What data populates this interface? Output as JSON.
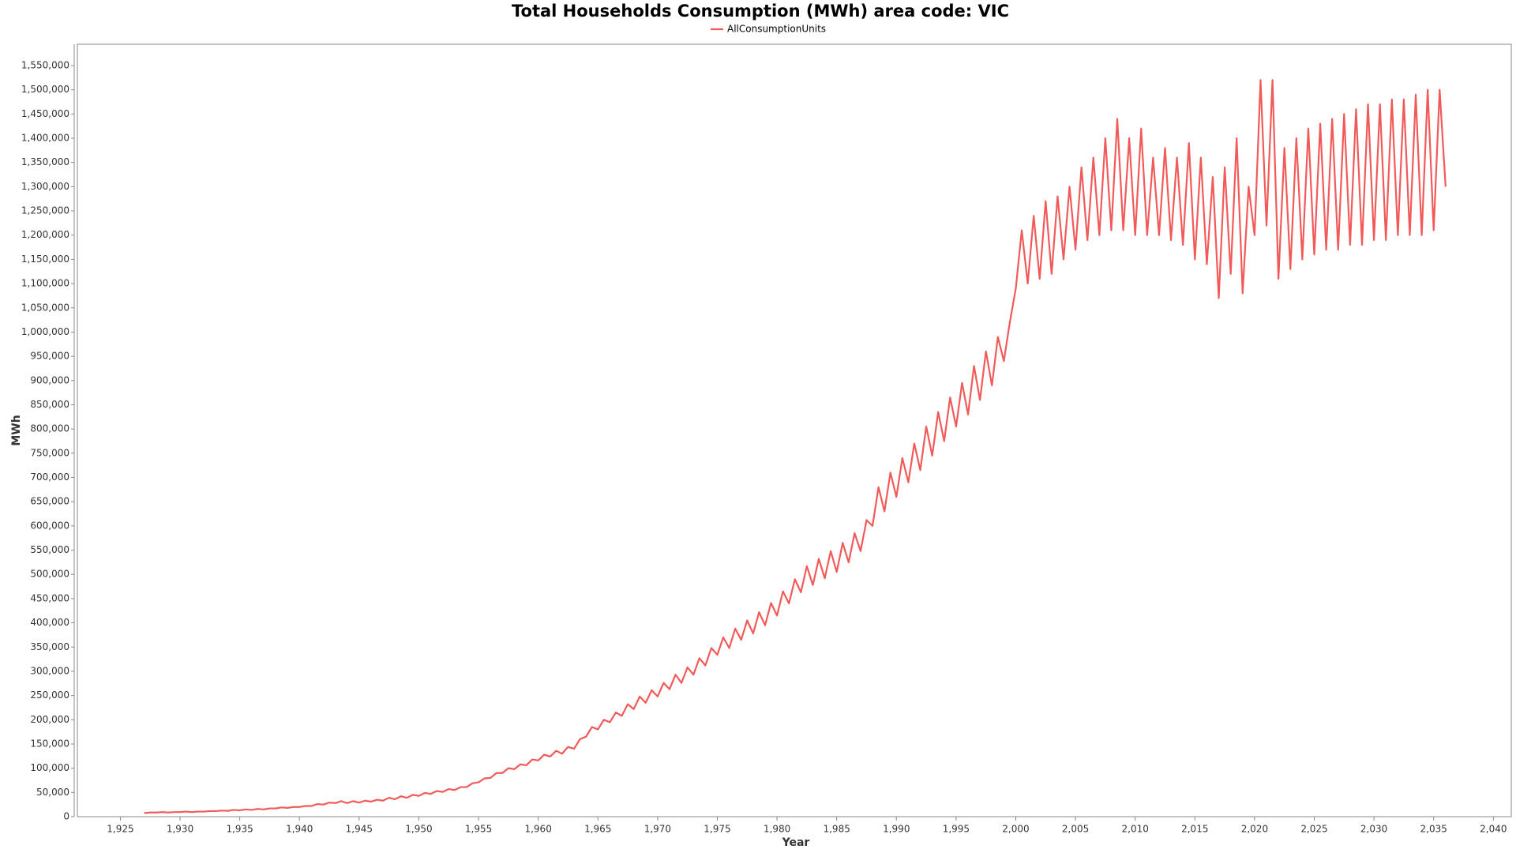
{
  "chart_data": {
    "type": "line",
    "title": "Total Households Consumption (MWh) area code: VIC",
    "x_label": "Year",
    "y_label": "MWh",
    "legend": "top",
    "grid": false,
    "xlim": [
      1921.4,
      2041.5
    ],
    "ylim": [
      0,
      1594000
    ],
    "xticks": [
      {
        "value": 1925,
        "label": "1,925"
      },
      {
        "value": 1930,
        "label": "1,930"
      },
      {
        "value": 1935,
        "label": "1,935"
      },
      {
        "value": 1940,
        "label": "1,940"
      },
      {
        "value": 1945,
        "label": "1,945"
      },
      {
        "value": 1950,
        "label": "1,950"
      },
      {
        "value": 1955,
        "label": "1,955"
      },
      {
        "value": 1960,
        "label": "1,960"
      },
      {
        "value": 1965,
        "label": "1,965"
      },
      {
        "value": 1970,
        "label": "1,970"
      },
      {
        "value": 1975,
        "label": "1,975"
      },
      {
        "value": 1980,
        "label": "1,980"
      },
      {
        "value": 1985,
        "label": "1,985"
      },
      {
        "value": 1990,
        "label": "1,990"
      },
      {
        "value": 1995,
        "label": "1,995"
      },
      {
        "value": 2000,
        "label": "2,000"
      },
      {
        "value": 2005,
        "label": "2,005"
      },
      {
        "value": 2010,
        "label": "2,010"
      },
      {
        "value": 2015,
        "label": "2,015"
      },
      {
        "value": 2020,
        "label": "2,020"
      },
      {
        "value": 2025,
        "label": "2,025"
      },
      {
        "value": 2030,
        "label": "2,030"
      },
      {
        "value": 2035,
        "label": "2,035"
      },
      {
        "value": 2040,
        "label": "2,040"
      }
    ],
    "yticks": [
      0,
      {
        "value": 50000,
        "label": "50,000"
      },
      {
        "value": 100000,
        "label": "100,000"
      },
      {
        "value": 150000,
        "label": "150,000"
      },
      {
        "value": 200000,
        "label": "200,000"
      },
      {
        "value": 250000,
        "label": "250,000"
      },
      {
        "value": 300000,
        "label": "300,000"
      },
      {
        "value": 350000,
        "label": "350,000"
      },
      {
        "value": 400000,
        "label": "400,000"
      },
      {
        "value": 450000,
        "label": "450,000"
      },
      {
        "value": 500000,
        "label": "500,000"
      },
      {
        "value": 550000,
        "label": "550,000"
      },
      {
        "value": 600000,
        "label": "600,000"
      },
      {
        "value": 650000,
        "label": "650,000"
      },
      {
        "value": 700000,
        "label": "700,000"
      },
      {
        "value": 750000,
        "label": "750,000"
      },
      {
        "value": 800000,
        "label": "800,000"
      },
      {
        "value": 850000,
        "label": "850,000"
      },
      {
        "value": 900000,
        "label": "900,000"
      },
      {
        "value": 950000,
        "label": "950,000"
      },
      {
        "value": 1000000,
        "label": "1,000,000"
      },
      {
        "value": 1050000,
        "label": "1,050,000"
      },
      {
        "value": 1100000,
        "label": "1,100,000"
      },
      {
        "value": 1150000,
        "label": "1,150,000"
      },
      {
        "value": 1200000,
        "label": "1,200,000"
      },
      {
        "value": 1250000,
        "label": "1,250,000"
      },
      {
        "value": 1300000,
        "label": "1,300,000"
      },
      {
        "value": 1350000,
        "label": "1,350,000"
      },
      {
        "value": 1400000,
        "label": "1,400,000"
      },
      {
        "value": 1450000,
        "label": "1,450,000"
      },
      {
        "value": 1500000,
        "label": "1,500,000"
      },
      {
        "value": 1550000,
        "label": "1,550,000"
      }
    ],
    "x": [
      1927,
      1927.5,
      1928,
      1928.5,
      1929,
      1929.5,
      1930,
      1930.5,
      1931,
      1931.5,
      1932,
      1932.5,
      1933,
      1933.5,
      1934,
      1934.5,
      1935,
      1935.5,
      1936,
      1936.5,
      1937,
      1937.5,
      1938,
      1938.5,
      1939,
      1939.5,
      1940,
      1940.5,
      1941,
      1941.5,
      1942,
      1942.5,
      1943,
      1943.5,
      1944,
      1944.5,
      1945,
      1945.5,
      1946,
      1946.5,
      1947,
      1947.5,
      1948,
      1948.5,
      1949,
      1949.5,
      1950,
      1950.5,
      1951,
      1951.5,
      1952,
      1952.5,
      1953,
      1953.5,
      1954,
      1954.5,
      1955,
      1955.5,
      1956,
      1956.5,
      1957,
      1957.5,
      1958,
      1958.5,
      1959,
      1959.5,
      1960,
      1960.5,
      1961,
      1961.5,
      1962,
      1962.5,
      1963,
      1963.5,
      1964,
      1964.5,
      1965,
      1965.5,
      1966,
      1966.5,
      1967,
      1967.5,
      1968,
      1968.5,
      1969,
      1969.5,
      1970,
      1970.5,
      1971,
      1971.5,
      1972,
      1972.5,
      1973,
      1973.5,
      1974,
      1974.5,
      1975,
      1975.5,
      1976,
      1976.5,
      1977,
      1977.5,
      1978,
      1978.5,
      1979,
      1979.5,
      1980,
      1980.5,
      1981,
      1981.5,
      1982,
      1982.5,
      1983,
      1983.5,
      1984,
      1984.5,
      1985,
      1985.5,
      1986,
      1986.5,
      1987,
      1987.5,
      1988,
      1988.5,
      1989,
      1989.5,
      1990,
      1990.5,
      1991,
      1991.5,
      1992,
      1992.5,
      1993,
      1993.5,
      1994,
      1994.5,
      1995,
      1995.5,
      1996,
      1996.5,
      1997,
      1997.5,
      1998,
      1998.5,
      1999,
      1999.5,
      2000,
      2000.5,
      2001,
      2001.5,
      2002,
      2002.5,
      2003,
      2003.5,
      2004,
      2004.5,
      2005,
      2005.5,
      2006,
      2006.5,
      2007,
      2007.5,
      2008,
      2008.5,
      2009,
      2009.5,
      2010,
      2010.5,
      2011,
      2011.5,
      2012,
      2012.5,
      2013,
      2013.5,
      2014,
      2014.5,
      2015,
      2015.5,
      2016,
      2016.5,
      2017,
      2017.5,
      2018,
      2018.5,
      2019,
      2019.5,
      2020,
      2020.5,
      2021,
      2021.5,
      2022,
      2022.5,
      2023,
      2023.5,
      2024,
      2024.5,
      2025,
      2025.5,
      2026,
      2026.5,
      2027,
      2027.5,
      2028,
      2028.5,
      2029,
      2029.5,
      2030,
      2030.5,
      2031,
      2031.5,
      2032,
      2032.5,
      2033,
      2033.5,
      2034,
      2034.5,
      2035,
      2035.5,
      2036
    ],
    "series": [
      {
        "name": "AllConsumptionUnits",
        "color": "#f25a5a",
        "values": [
          7500,
          8500,
          8500,
          9500,
          8500,
          9500,
          9500,
          10500,
          9500,
          10500,
          10500,
          11500,
          11500,
          12500,
          12000,
          14000,
          13000,
          15000,
          14000,
          16000,
          15000,
          17000,
          17000,
          19000,
          18000,
          20000,
          20000,
          22000,
          22000,
          26000,
          25000,
          29000,
          28000,
          32000,
          28000,
          32000,
          29000,
          33000,
          31000,
          35000,
          33000,
          39000,
          36000,
          42000,
          39000,
          45000,
          43000,
          49000,
          47000,
          53000,
          51000,
          57000,
          55000,
          61000,
          61000,
          69000,
          71000,
          79000,
          80000,
          90000,
          90000,
          100000,
          98000,
          108000,
          106000,
          118000,
          116000,
          128000,
          124000,
          136000,
          130000,
          144000,
          140000,
          160000,
          165000,
          185000,
          180000,
          200000,
          195000,
          215000,
          208000,
          232000,
          222000,
          248000,
          235000,
          261000,
          248000,
          276000,
          263000,
          293000,
          276000,
          308000,
          293000,
          327000,
          312000,
          348000,
          334000,
          370000,
          348000,
          388000,
          365000,
          405000,
          378000,
          422000,
          395000,
          441000,
          415000,
          465000,
          440000,
          490000,
          463000,
          517000,
          478000,
          532000,
          492000,
          548000,
          505000,
          565000,
          525000,
          585000,
          548000,
          612000,
          600000,
          680000,
          630000,
          710000,
          660000,
          740000,
          690000,
          770000,
          715000,
          805000,
          745000,
          835000,
          775000,
          865000,
          805000,
          895000,
          830000,
          930000,
          860000,
          960000,
          890000,
          990000,
          940000,
          1020000,
          1090000,
          1210000,
          1100000,
          1240000,
          1110000,
          1270000,
          1120000,
          1280000,
          1150000,
          1300000,
          1170000,
          1340000,
          1190000,
          1360000,
          1200000,
          1400000,
          1210000,
          1440000,
          1210000,
          1400000,
          1200000,
          1420000,
          1200000,
          1360000,
          1200000,
          1380000,
          1190000,
          1360000,
          1180000,
          1390000,
          1150000,
          1360000,
          1140000,
          1320000,
          1070000,
          1340000,
          1120000,
          1400000,
          1080000,
          1300000,
          1200000,
          1520000,
          1220000,
          1520000,
          1110000,
          1380000,
          1130000,
          1400000,
          1150000,
          1420000,
          1160000,
          1430000,
          1170000,
          1440000,
          1170000,
          1450000,
          1180000,
          1460000,
          1180000,
          1470000,
          1190000,
          1470000,
          1190000,
          1480000,
          1200000,
          1480000,
          1200000,
          1490000,
          1200000,
          1500000,
          1210000,
          1500000,
          1300000
        ]
      }
    ]
  }
}
